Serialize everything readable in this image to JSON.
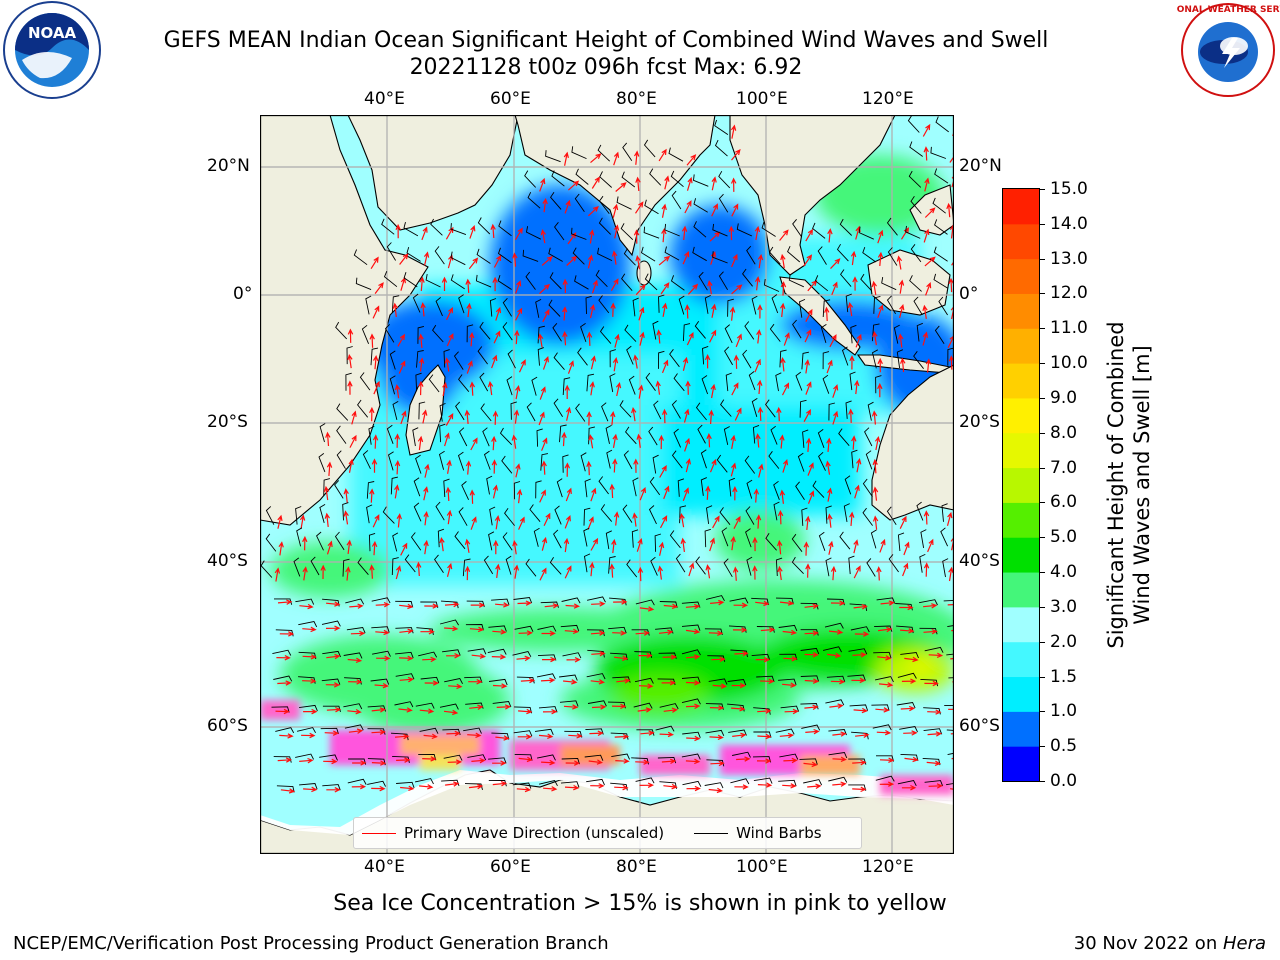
{
  "title": {
    "line1": "GEFS MEAN Indian Ocean Significant Height of Combined Wind Waves and Swell",
    "line2": "20221128 t00z 096h fcst   Max: 6.92"
  },
  "logos": {
    "noaa_text": "NOAA",
    "nws_text": "NATIONAL WEATHER SERVICE"
  },
  "axes": {
    "lon_ticks": [
      "40°E",
      "60°E",
      "80°E",
      "100°E",
      "120°E"
    ],
    "lat_ticks_left": [
      "20°N",
      "0°",
      "20°S",
      "40°S",
      "60°S"
    ],
    "lat_ticks_right": [
      "20°N",
      "0°",
      "20°S",
      "40°S",
      "60°S"
    ]
  },
  "legend": {
    "wave_dir": "Primary Wave Direction (unscaled)",
    "wind_barbs": "Wind Barbs",
    "wave_color": "#ff0000",
    "barb_color": "#000000"
  },
  "colorbar": {
    "label_line1": "Significant Height of Combined",
    "label_line2": "Wind Waves and Swell [m]",
    "ticks": [
      "15.0",
      "14.0",
      "13.0",
      "12.0",
      "11.0",
      "10.0",
      "9.0",
      "8.0",
      "7.0",
      "6.0",
      "5.0",
      "4.0",
      "3.0",
      "2.0",
      "1.5",
      "1.0",
      "0.5",
      "0.0"
    ],
    "colors": [
      "#0000ff",
      "#0070ff",
      "#00eeff",
      "#44f8ff",
      "#a0ffff",
      "#44f67a",
      "#00e000",
      "#55ef00",
      "#b8f700",
      "#e6f800",
      "#fff000",
      "#ffd000",
      "#ffb000",
      "#ff8c00",
      "#ff6a00",
      "#ff4800",
      "#ff2000"
    ]
  },
  "chart_data": {
    "type": "heatmap",
    "variable": "Significant Height of Combined Wind Waves and Swell [m]",
    "max": 6.92,
    "lon_range": [
      20,
      130
    ],
    "lat_range": [
      -75,
      28
    ],
    "scale_breaks": [
      0.0,
      0.5,
      1.0,
      1.5,
      2.0,
      3.0,
      4.0,
      5.0,
      6.0,
      7.0,
      8.0,
      9.0,
      10.0,
      11.0,
      12.0,
      13.0,
      14.0,
      15.0
    ]
  },
  "footer": {
    "ice_note": "Sea Ice Concentration > 15% is shown in pink to yellow",
    "left": "NCEP/EMC/Verification Post Processing Product Generation Branch",
    "right_prefix": "30 Nov 2022 on ",
    "right_machine": "Hera"
  }
}
